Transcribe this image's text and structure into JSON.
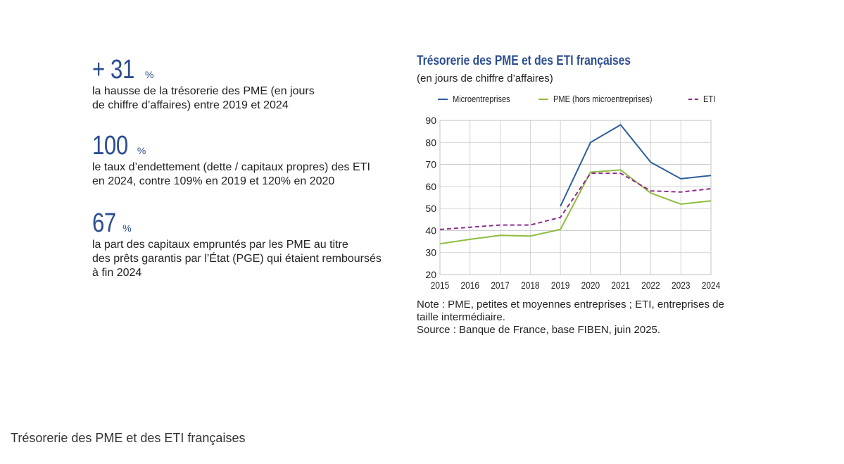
{
  "stats": [
    {
      "value": "+ 31",
      "unit": "%",
      "text": "la hausse de la trésorerie des PME (en jours\nde chiffre d’affaires) entre 2019 et 2024"
    },
    {
      "value": "100",
      "unit": "%",
      "text": "le taux d’endettement (dette / capitaux propres) des ETI\nen 2024, contre 109% en 2019 et 120% en 2020"
    },
    {
      "value": "67",
      "unit": "%",
      "text": "la part des capitaux empruntés par les PME au titre\ndes prêts garantis par l’État (PGE) qui étaient remboursés\nà fin 2024"
    }
  ],
  "note": "Note : PME, petites et moyennes entreprises ; ETI, entreprises de\ntaille intermédiaire.\nSource : Banque de France, base FIBEN, juin 2025.",
  "caption": "Trésorerie des PME et des ETI françaises",
  "chart_data": {
    "type": "line",
    "title": "Trésorerie des PME et des ETI françaises",
    "subtitle": "(en jours de chiffre d’affaires)",
    "xlabel": "",
    "ylabel": "",
    "x": [
      2015,
      2016,
      2017,
      2018,
      2019,
      2020,
      2021,
      2022,
      2023,
      2024
    ],
    "ylim": [
      20,
      90
    ],
    "yticks": [
      20,
      30,
      40,
      50,
      60,
      70,
      80,
      90
    ],
    "grid": true,
    "legend_position": "top",
    "series": [
      {
        "name": "Microentreprises",
        "color": "#2e5f9a",
        "dash": false,
        "values": [
          null,
          null,
          null,
          null,
          51,
          80,
          88,
          71,
          63.5,
          65
        ]
      },
      {
        "name": "PME (hors microentreprises)",
        "color": "#8fbc3f",
        "dash": false,
        "values": [
          34,
          36,
          37.8,
          37.5,
          40.5,
          66.5,
          67.5,
          57,
          52,
          53.5
        ]
      },
      {
        "name": "ETI",
        "color": "#8e2c8e",
        "dash": true,
        "values": [
          40.5,
          41.5,
          42.5,
          42.5,
          46,
          66,
          66,
          58,
          57.5,
          59
        ]
      }
    ]
  }
}
